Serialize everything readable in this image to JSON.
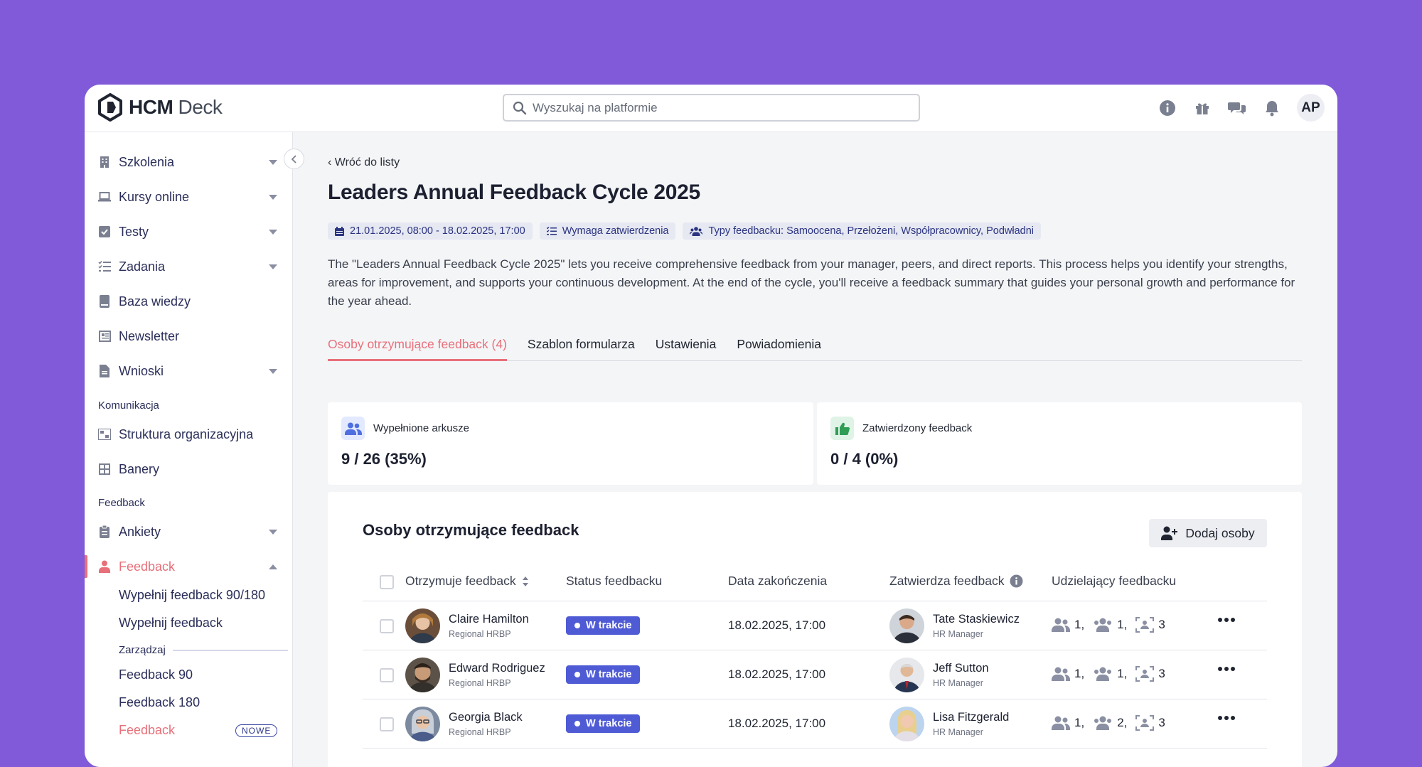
{
  "app": {
    "logo_bold": "HCM",
    "logo_light": "Deck",
    "avatar_initials": "AP"
  },
  "search": {
    "placeholder": "Wyszukaj na platformie"
  },
  "sidebar": {
    "items": [
      {
        "label": "Szkolenia",
        "icon": "building-icon"
      },
      {
        "label": "Kursy online",
        "icon": "laptop-icon"
      },
      {
        "label": "Testy",
        "icon": "checkbox-icon"
      },
      {
        "label": "Zadania",
        "icon": "checklist-icon"
      },
      {
        "label": "Baza wiedzy",
        "icon": "book-icon"
      },
      {
        "label": "Newsletter",
        "icon": "newspaper-icon"
      },
      {
        "label": "Wnioski",
        "icon": "document-icon"
      }
    ],
    "section_komunikacja": "Komunikacja",
    "komunikacja_items": [
      {
        "label": "Struktura organizacyjna",
        "icon": "org-chart-icon"
      },
      {
        "label": "Banery",
        "icon": "grid-icon"
      }
    ],
    "section_feedback": "Feedback",
    "feedback_items": [
      {
        "label": "Ankiety",
        "icon": "clipboard-icon"
      },
      {
        "label": "Feedback",
        "icon": "user-feedback-icon"
      }
    ],
    "feedback_sub": [
      "Wypełnij feedback 90/180",
      "Wypełnij feedback"
    ],
    "manage_label": "Zarządzaj",
    "manage_sub": [
      "Feedback 90",
      "Feedback 180",
      "Feedback"
    ],
    "new_badge": "NOWE"
  },
  "main": {
    "back_label": "Wróć do listy",
    "title": "Leaders Annual Feedback Cycle 2025",
    "chips": {
      "dates": "21.01.2025, 08:00 - 18.02.2025, 17:00",
      "approval": "Wymaga zatwierdzenia",
      "types": "Typy feedbacku: Samoocena, Przełożeni, Współpracownicy, Podwładni"
    },
    "description": "The \"Leaders Annual Feedback Cycle 2025\" lets you receive comprehensive feedback from your manager, peers, and direct reports. This process helps you identify your strengths, areas for improvement, and supports your continuous development. At the end of the cycle, you'll receive a feedback summary that guides your personal growth and performance for the year ahead.",
    "tabs": [
      "Osoby otrzymujące feedback (4)",
      "Szablon formularza",
      "Ustawienia",
      "Powiadomienia"
    ],
    "stats": [
      {
        "label": "Wypełnione arkusze",
        "value": "9 / 26 (35%)"
      },
      {
        "label": "Zatwierdzony feedback",
        "value": "0 / 4 (0%)"
      }
    ],
    "panel_title": "Osoby otrzymujące feedback",
    "add_button": "Dodaj osoby",
    "columns": {
      "receiver": "Otrzymuje feedback",
      "status": "Status feedbacku",
      "end_date": "Data zakończenia",
      "approver": "Zatwierdza feedback",
      "givers": "Udzielający feedbacku"
    },
    "rows": [
      {
        "name": "Claire Hamilton",
        "role": "Regional HRBP",
        "status": "W trakcie",
        "date": "18.02.2025, 17:00",
        "approver": "Tate Staskiewicz",
        "approver_role": "HR Manager",
        "g1": "1,",
        "g2": "1,",
        "g3": "3"
      },
      {
        "name": "Edward Rodriguez",
        "role": "Regional HRBP",
        "status": "W trakcie",
        "date": "18.02.2025, 17:00",
        "approver": "Jeff Sutton",
        "approver_role": "HR Manager",
        "g1": "1,",
        "g2": "1,",
        "g3": "3"
      },
      {
        "name": "Georgia Black",
        "role": "Regional HRBP",
        "status": "W trakcie",
        "date": "18.02.2025, 17:00",
        "approver": "Lisa Fitzgerald",
        "approver_role": "HR Manager",
        "g1": "1,",
        "g2": "2,",
        "g3": "3"
      }
    ]
  },
  "colors": {
    "background": "#805ad8",
    "accent": "#e8707a",
    "status": "#4f5bd5",
    "chip_text": "#2b3480"
  }
}
